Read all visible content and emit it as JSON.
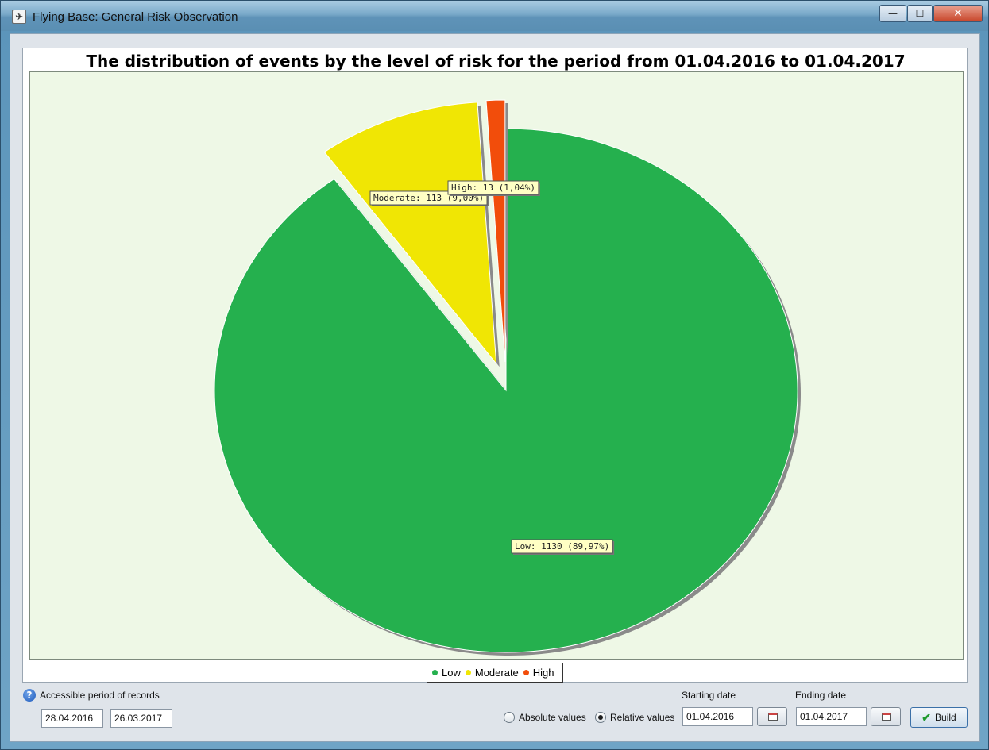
{
  "window": {
    "title": "Flying Base: General Risk Observation",
    "controls": {
      "minimize": "—",
      "maximize": "☐",
      "close": "✕"
    }
  },
  "chart_data": {
    "type": "pie",
    "title": "The distribution of events by the level of risk for the period from 01.04.2016 to 01.04.2017",
    "categories": [
      "Low",
      "Moderate",
      "High"
    ],
    "values": [
      1130,
      113,
      13
    ],
    "percent_labels": [
      "89,97%",
      "9,00%",
      "1,04%"
    ],
    "data_labels": [
      "Low: 1130 (89,97%)",
      "Moderate: 113 (9,00%)",
      "High: 13 (1,04%)"
    ],
    "colors": [
      "#25b04e",
      "#f0e604",
      "#f24d0b"
    ],
    "exploded": [
      "Moderate",
      "High"
    ],
    "legend_placement": "bottom-center",
    "plot_background": "#eef8e6"
  },
  "controls": {
    "accessible_label": "Accessible period of records",
    "accessible_from": "28.04.2016",
    "accessible_to": "26.03.2017",
    "absolute_label": "Absolute values",
    "relative_label": "Relative values",
    "selected_mode": "relative",
    "starting_label": "Starting date",
    "starting_value": "01.04.2016",
    "ending_label": "Ending date",
    "ending_value": "01.04.2017",
    "build_label": "Build"
  }
}
